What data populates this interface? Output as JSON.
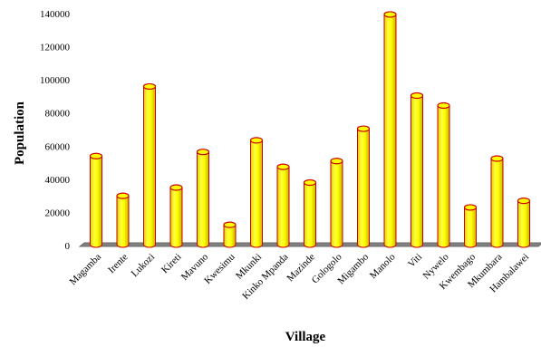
{
  "chart_data": {
    "type": "bar",
    "title": "",
    "xlabel": "Village",
    "ylabel": "Population",
    "ylim": [
      0,
      140000
    ],
    "yticks": [
      0,
      20000,
      40000,
      60000,
      80000,
      100000,
      120000,
      140000
    ],
    "categories": [
      "Magamba",
      "Irente",
      "Lukozi",
      "Kireti",
      "Mavuno",
      "Kwesimu",
      "Mkunki",
      "Kinko Mpanda",
      "Mazinde",
      "Gologolo",
      "Migambo",
      "Manolo",
      "Viti",
      "Nywelo",
      "Kwembago",
      "Mkumbara",
      "Hambalawei"
    ],
    "series": [
      {
        "values": [
          54000,
          30000,
          96000,
          35000,
          56500,
          12500,
          63500,
          47500,
          38000,
          51000,
          70500,
          139500,
          90500,
          84500,
          23000,
          52500,
          27000
        ]
      }
    ],
    "grid": false,
    "legend": "none",
    "colors": {
      "bar_fill": "#ffff00",
      "bar_edge": "#cc0000",
      "floor": "#808080"
    }
  }
}
